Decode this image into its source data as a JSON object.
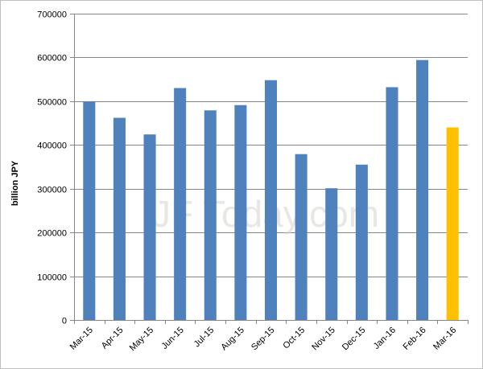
{
  "chart_data": {
    "type": "bar",
    "ylabel": "billion JPY",
    "xlabel": "",
    "ylim": [
      0,
      700000
    ],
    "yticks": [
      0,
      100000,
      200000,
      300000,
      400000,
      500000,
      600000,
      700000
    ],
    "grid": true,
    "categories": [
      "Mar-15",
      "Apr-15",
      "May-15",
      "Jun-15",
      "Jul-15",
      "Aug-15",
      "Sep-15",
      "Oct-15",
      "Nov-15",
      "Dec-15",
      "Jan-16",
      "Feb-16",
      "Mar-16"
    ],
    "values": [
      499000,
      462000,
      424000,
      530000,
      479000,
      491000,
      548000,
      379000,
      301000,
      355000,
      532000,
      594000,
      440000
    ],
    "bar_color": "#4f81bd",
    "highlight_color": "#ffc000",
    "highlight_index": 12,
    "watermark": "JF Today.com"
  }
}
